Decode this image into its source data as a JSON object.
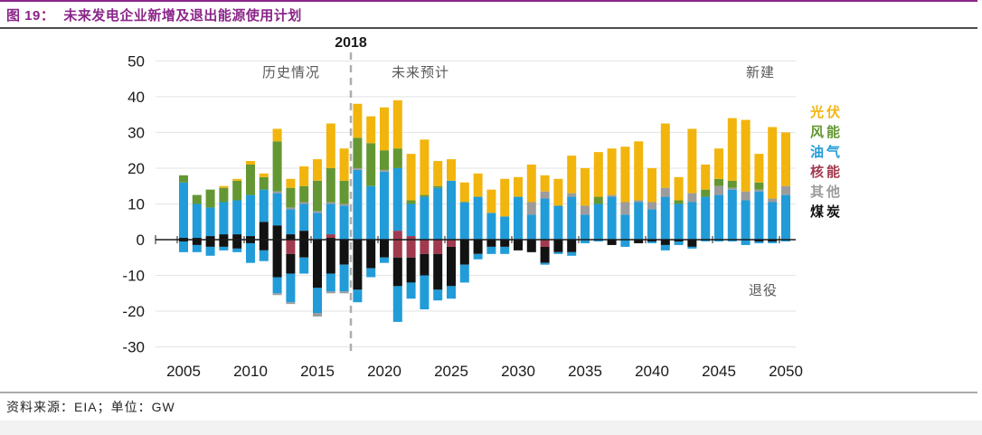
{
  "figure": {
    "title_prefix": "图 19：",
    "title_text": "未来发电企业新增及退出能源使用计划",
    "source_note": "资料来源：EIA；单位：GW"
  },
  "chart_data": {
    "type": "bar",
    "stacked": true,
    "unit": "GW",
    "title": "未来发电企业新增及退出能源使用计划",
    "xlabel": "",
    "ylabel": "GW",
    "ylim": [
      -30,
      50
    ],
    "y_ticks": [
      50,
      40,
      30,
      20,
      10,
      0,
      -10,
      -20,
      -30
    ],
    "x_tick_years": [
      2005,
      2010,
      2015,
      2020,
      2025,
      2030,
      2035,
      2040,
      2045,
      2050
    ],
    "x": [
      2005,
      2006,
      2007,
      2008,
      2009,
      2010,
      2011,
      2012,
      2013,
      2014,
      2015,
      2016,
      2017,
      2018,
      2019,
      2020,
      2021,
      2022,
      2023,
      2024,
      2025,
      2026,
      2027,
      2028,
      2029,
      2030,
      2031,
      2032,
      2033,
      2034,
      2035,
      2036,
      2037,
      2038,
      2039,
      2040,
      2041,
      2042,
      2043,
      2044,
      2045,
      2046,
      2047,
      2048,
      2049,
      2050
    ],
    "divider_year": 2017.5,
    "annotations": {
      "divider_year_label": "2018",
      "left_of_divider": "历史情况",
      "right_of_divider": "未来预计",
      "top_right": "新建",
      "bottom_right": "退役"
    },
    "legend": [
      {
        "key": "solar",
        "label": "光伏",
        "color": "#f2b50d"
      },
      {
        "key": "wind",
        "label": "风能",
        "color": "#649733"
      },
      {
        "key": "oil-gas",
        "label": "油气",
        "color": "#219cd8"
      },
      {
        "key": "nuclear",
        "label": "核能",
        "color": "#a13a4e"
      },
      {
        "key": "other",
        "label": "其他",
        "color": "#9c9c9c"
      },
      {
        "key": "coal",
        "label": "煤炭",
        "color": "#121212"
      }
    ],
    "series_additions": [
      {
        "key": "coal",
        "name": "煤炭",
        "color": "#121212",
        "values": [
          0.5,
          0.5,
          1,
          1.5,
          1.5,
          1,
          5,
          4,
          1.5,
          2.5,
          0,
          0.5,
          0,
          0,
          0,
          0,
          0,
          0,
          0,
          0,
          0,
          0,
          0,
          0,
          0,
          0,
          0,
          0,
          0,
          0,
          0,
          0,
          0,
          0,
          0,
          0,
          0,
          0,
          0,
          0,
          0,
          0,
          0,
          0,
          0,
          0
        ]
      },
      {
        "key": "nuclear",
        "name": "核能",
        "color": "#a13a4e",
        "values": [
          0,
          0,
          0,
          0,
          0,
          0,
          0,
          0,
          0,
          0,
          0,
          1,
          0,
          0,
          0,
          0,
          2.5,
          1,
          0,
          0,
          0,
          0,
          0,
          0,
          0,
          0,
          0,
          0,
          0,
          0,
          0,
          0,
          0,
          0,
          0,
          0,
          0,
          0,
          0,
          0,
          0,
          0,
          0,
          0,
          0,
          0
        ]
      },
      {
        "key": "oil-gas",
        "name": "油气",
        "color": "#219cd8",
        "values": [
          15.5,
          9.5,
          8,
          9,
          9.5,
          11.5,
          9,
          9,
          7,
          7.5,
          7.5,
          8.5,
          9.5,
          19.5,
          15,
          19,
          17.5,
          9,
          12,
          14.5,
          16.5,
          10.5,
          12,
          7.5,
          6.5,
          12,
          7,
          11.5,
          9.5,
          12,
          7,
          10,
          12,
          7,
          10.5,
          8.5,
          12,
          10,
          10.5,
          12,
          12.5,
          14,
          11,
          13.5,
          10.5,
          12.5
        ]
      },
      {
        "key": "other",
        "name": "其他",
        "color": "#9c9c9c",
        "values": [
          0,
          0,
          0,
          0,
          0,
          0,
          0,
          0.5,
          0.5,
          0.5,
          0.5,
          0.5,
          0.5,
          0.5,
          0,
          0.5,
          0,
          0,
          0,
          0,
          0,
          0,
          0,
          0,
          0,
          0,
          3.5,
          2,
          0,
          1,
          2.5,
          0,
          0.5,
          3.5,
          0.5,
          2,
          2.5,
          0,
          2.5,
          0,
          2.5,
          0.5,
          2.5,
          0.5,
          1,
          2.5
        ]
      },
      {
        "key": "wind",
        "name": "风能",
        "color": "#649733",
        "values": [
          2,
          2.5,
          5,
          4,
          5.5,
          8.5,
          3.5,
          14,
          5.5,
          4.5,
          8.5,
          9.5,
          6.5,
          8.5,
          12,
          5.5,
          5.5,
          1,
          0.5,
          0.5,
          0,
          0,
          0,
          0,
          0,
          0,
          0,
          0,
          0,
          0,
          0,
          2,
          0,
          0,
          0,
          0,
          0,
          1,
          0,
          2,
          2,
          2,
          0,
          2,
          0,
          0
        ]
      },
      {
        "key": "solar",
        "name": "光伏",
        "color": "#f2b50d",
        "values": [
          0,
          0,
          0,
          0.5,
          0.5,
          1,
          1,
          3.5,
          2.5,
          5.5,
          6,
          12.5,
          9,
          9.5,
          7.5,
          12,
          13.5,
          13,
          15.5,
          7,
          6,
          5.5,
          6.5,
          6.5,
          10.5,
          5.5,
          10.5,
          4.5,
          7.5,
          10.5,
          10.5,
          12.5,
          13,
          15.5,
          16.5,
          9.5,
          18,
          6.5,
          18,
          7,
          8.5,
          17.5,
          20,
          8,
          20,
          15
        ]
      }
    ],
    "series_retirements": [
      {
        "key": "nuclear",
        "name": "核能",
        "color": "#a13a4e",
        "values": [
          0,
          0,
          0,
          0,
          0,
          0,
          0,
          0,
          -4,
          0,
          0,
          0,
          0,
          0,
          0,
          0,
          -5,
          -5,
          -4,
          -4,
          -2,
          0,
          0,
          0,
          0,
          0,
          0,
          -2,
          0,
          0,
          0,
          0,
          0,
          0,
          0,
          0,
          0,
          0,
          0,
          0,
          0,
          0,
          0,
          0,
          0,
          0
        ]
      },
      {
        "key": "coal",
        "name": "煤炭",
        "color": "#121212",
        "values": [
          -0.5,
          -1.5,
          -2,
          -2,
          -2.5,
          -1,
          -3,
          -10.5,
          -5.5,
          -5,
          -13.5,
          -9.5,
          -7,
          -14,
          -8,
          -5,
          -8,
          -7,
          -6,
          -10,
          -11,
          -7,
          -4,
          -2,
          -2,
          -3,
          -3.5,
          -4.5,
          -3.5,
          -3.5,
          0,
          0,
          -1.5,
          0,
          -1,
          -0.5,
          -1.5,
          -0.5,
          -2,
          0,
          0,
          0,
          0,
          -0.5,
          -0.5,
          0
        ]
      },
      {
        "key": "oil-gas",
        "name": "油气",
        "color": "#219cd8",
        "values": [
          -3,
          -2,
          -2.5,
          -1,
          -1,
          -5.5,
          -3,
          -4.5,
          -8,
          -4.5,
          -7,
          -5,
          -7.5,
          -3.5,
          -2.5,
          -1.5,
          -10,
          -4.5,
          -9.5,
          -3,
          -3.5,
          -5,
          -1.5,
          -2,
          -2,
          0,
          0,
          -0.5,
          -0.5,
          -1,
          -1,
          -0.5,
          0,
          -2,
          0,
          -0.5,
          -1.5,
          -1,
          -0.5,
          -0.5,
          -0.5,
          -0.5,
          -1.5,
          -0.5,
          -0.5,
          -0.5
        ]
      },
      {
        "key": "other",
        "name": "其他",
        "color": "#9c9c9c",
        "values": [
          0,
          0,
          0,
          0,
          0,
          0,
          0,
          -0.5,
          -0.5,
          0,
          -1,
          -0.5,
          -0.5,
          0,
          0,
          0,
          0,
          0,
          0,
          0,
          0,
          0,
          0,
          0,
          0,
          0,
          0,
          0,
          0,
          0,
          0,
          0,
          0,
          0,
          0,
          0,
          0,
          0,
          0,
          0,
          0,
          0,
          0,
          0,
          0,
          0
        ]
      }
    ]
  }
}
